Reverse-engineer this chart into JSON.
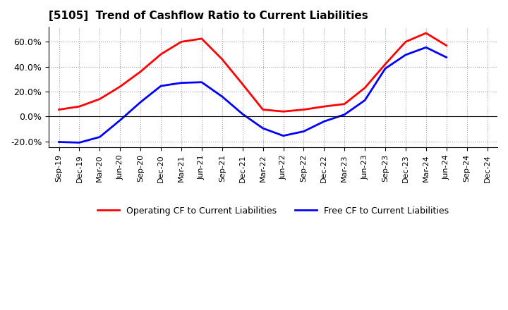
{
  "title": "[5105]  Trend of Cashflow Ratio to Current Liabilities",
  "x_labels": [
    "Sep-19",
    "Dec-19",
    "Mar-20",
    "Jun-20",
    "Sep-20",
    "Dec-20",
    "Mar-21",
    "Jun-21",
    "Sep-21",
    "Dec-21",
    "Mar-22",
    "Jun-22",
    "Sep-22",
    "Dec-22",
    "Mar-23",
    "Jun-23",
    "Sep-23",
    "Dec-23",
    "Mar-24",
    "Jun-24",
    "Sep-24",
    "Dec-24"
  ],
  "operating_cf": [
    0.055,
    0.08,
    0.14,
    0.24,
    0.36,
    0.5,
    0.6,
    0.625,
    0.46,
    0.26,
    0.055,
    0.04,
    0.055,
    0.08,
    0.1,
    0.23,
    0.42,
    0.6,
    0.67,
    0.57,
    null,
    null
  ],
  "free_cf": [
    -0.205,
    -0.21,
    -0.165,
    -0.03,
    0.115,
    0.245,
    0.27,
    0.275,
    0.16,
    0.02,
    -0.095,
    -0.155,
    -0.12,
    -0.04,
    0.015,
    0.13,
    0.385,
    0.495,
    0.555,
    0.475,
    null,
    null
  ],
  "operating_color": "#ff0000",
  "free_color": "#0000ff",
  "ylim": [
    -0.25,
    0.72
  ],
  "yticks": [
    -0.2,
    0.0,
    0.2,
    0.4,
    0.6
  ],
  "background_color": "#ffffff",
  "grid_color": "#888888",
  "legend_op": "Operating CF to Current Liabilities",
  "legend_free": "Free CF to Current Liabilities",
  "title_fontsize": 11,
  "tick_fontsize": 8
}
